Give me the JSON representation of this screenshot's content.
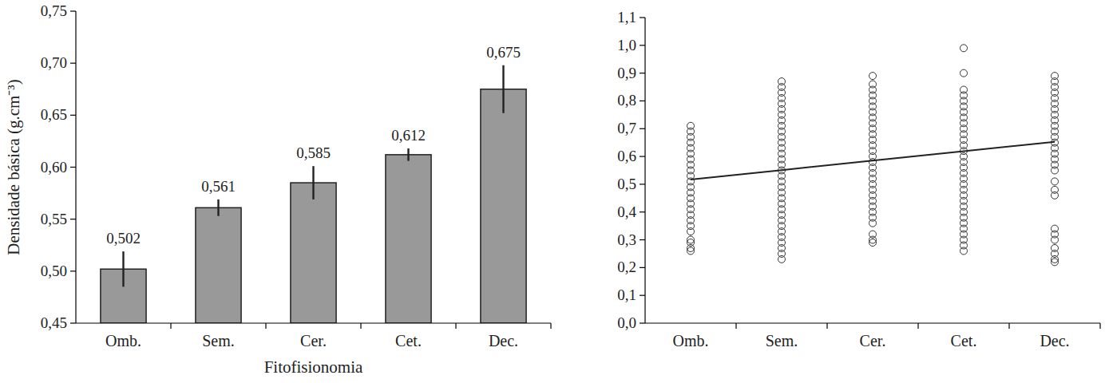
{
  "chart_data": [
    {
      "type": "bar",
      "x_label": "Fitofisionomia",
      "y_label": "Densidade básica (g.cm⁻³)",
      "categories": [
        "Omb.",
        "Sem.",
        "Cer.",
        "Cet.",
        "Dec."
      ],
      "values": [
        0.502,
        0.561,
        0.585,
        0.612,
        0.675
      ],
      "value_labels": [
        "0,502",
        "0,561",
        "0,585",
        "0,612",
        "0,675"
      ],
      "errors": [
        0.017,
        0.008,
        0.016,
        0.006,
        0.023
      ],
      "color": "#999999",
      "data_labels": true,
      "grid": false,
      "ylim": [
        0.45,
        0.75
      ],
      "yticks": [
        {
          "value": 0.45,
          "label": "0,45"
        },
        {
          "value": 0.5,
          "label": "0,50"
        },
        {
          "value": 0.55,
          "label": "0,55"
        },
        {
          "value": 0.6,
          "label": "0,60"
        },
        {
          "value": 0.65,
          "label": "0,65"
        },
        {
          "value": 0.7,
          "label": "0,70"
        },
        {
          "value": 0.75,
          "label": "0,75"
        }
      ]
    },
    {
      "type": "scatter",
      "categories": [
        "Omb.",
        "Sem.",
        "Cer.",
        "Cet.",
        "Dec."
      ],
      "grid": false,
      "ylim": [
        0,
        1.1
      ],
      "yticks": [
        {
          "value": 0,
          "label": "0,0"
        },
        {
          "value": 0.1,
          "label": "0,1"
        },
        {
          "value": 0.2,
          "label": "0,2"
        },
        {
          "value": 0.3,
          "label": "0,3"
        },
        {
          "value": 0.4,
          "label": "0,4"
        },
        {
          "value": 0.5,
          "label": "0,5"
        },
        {
          "value": 0.6,
          "label": "0,6"
        },
        {
          "value": 0.7,
          "label": "0,7"
        },
        {
          "value": 0.8,
          "label": "0,8"
        },
        {
          "value": 0.9,
          "label": "0,9"
        },
        {
          "value": 1.0,
          "label": "1,0"
        },
        {
          "value": 1.1,
          "label": "1,1"
        }
      ],
      "series": [
        {
          "type": "scatter",
          "marker": "circle",
          "color": "#333333",
          "values": [
            [
              0.26,
              0.27,
              0.29,
              0.3,
              0.33,
              0.35,
              0.37,
              0.39,
              0.41,
              0.43,
              0.45,
              0.47,
              0.49,
              0.51,
              0.53,
              0.55,
              0.57,
              0.59,
              0.61,
              0.63,
              0.65,
              0.67,
              0.69,
              0.71
            ],
            [
              0.23,
              0.25,
              0.27,
              0.29,
              0.31,
              0.33,
              0.35,
              0.37,
              0.39,
              0.41,
              0.43,
              0.45,
              0.47,
              0.49,
              0.51,
              0.53,
              0.55,
              0.57,
              0.59,
              0.61,
              0.63,
              0.65,
              0.67,
              0.69,
              0.71,
              0.73,
              0.75,
              0.77,
              0.79,
              0.81,
              0.83,
              0.85,
              0.87
            ],
            [
              0.29,
              0.3,
              0.32,
              0.36,
              0.38,
              0.4,
              0.42,
              0.44,
              0.46,
              0.48,
              0.5,
              0.52,
              0.54,
              0.56,
              0.58,
              0.6,
              0.62,
              0.64,
              0.66,
              0.68,
              0.7,
              0.72,
              0.74,
              0.76,
              0.78,
              0.8,
              0.82,
              0.84,
              0.86,
              0.89
            ],
            [
              0.26,
              0.28,
              0.3,
              0.32,
              0.34,
              0.36,
              0.38,
              0.4,
              0.42,
              0.44,
              0.46,
              0.48,
              0.5,
              0.52,
              0.54,
              0.56,
              0.58,
              0.6,
              0.62,
              0.64,
              0.66,
              0.68,
              0.7,
              0.72,
              0.74,
              0.76,
              0.78,
              0.8,
              0.82,
              0.84,
              0.9,
              0.99
            ],
            [
              0.22,
              0.23,
              0.25,
              0.27,
              0.3,
              0.32,
              0.34,
              0.46,
              0.48,
              0.51,
              0.55,
              0.57,
              0.59,
              0.61,
              0.63,
              0.65,
              0.67,
              0.69,
              0.71,
              0.73,
              0.75,
              0.77,
              0.79,
              0.81,
              0.83,
              0.85,
              0.87,
              0.89
            ]
          ]
        },
        {
          "type": "line",
          "line_style": "solid",
          "color": "#222222",
          "values": [
            0.517,
            0.551,
            0.585,
            0.619,
            0.653
          ]
        }
      ]
    }
  ]
}
